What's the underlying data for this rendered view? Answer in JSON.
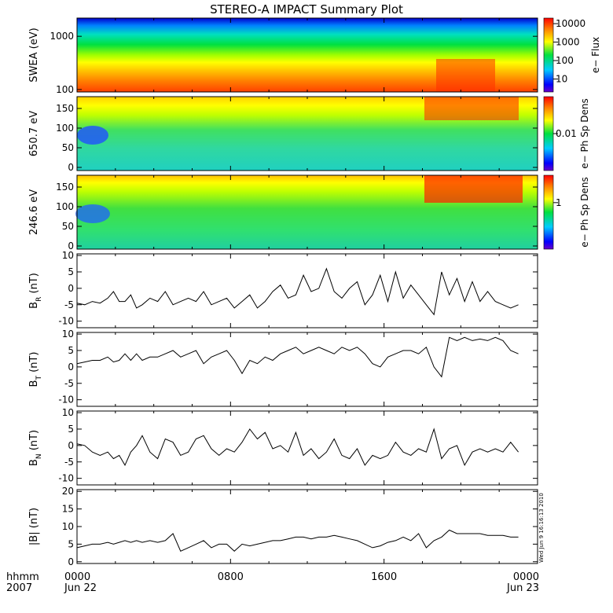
{
  "title": "STEREO-A IMPACT Summary Plot",
  "stamp": "Wed Jun  9 16:16:13 2010",
  "xaxis": {
    "unit_label": "hhmm",
    "year_label": "2007",
    "range_hours": [
      0,
      24
    ],
    "ticks": [
      {
        "hour": 0,
        "time": "0000",
        "date": "Jun 22"
      },
      {
        "hour": 8,
        "time": "0800",
        "date": ""
      },
      {
        "hour": 16,
        "time": "1600",
        "date": ""
      },
      {
        "hour": 24,
        "time": "0000",
        "date": "Jun 23"
      }
    ]
  },
  "chart_data": [
    {
      "type": "heatmap",
      "ylabel": "SWEA (eV)",
      "y_scale": "log",
      "y_range": [
        90,
        2200
      ],
      "yticks": [
        {
          "v": 100,
          "label": "100"
        },
        {
          "v": 1000,
          "label": "1000"
        }
      ],
      "colorbar": {
        "label": "e− Flux",
        "scale": "log",
        "range": [
          2,
          20000
        ],
        "ticks": [
          {
            "v": 10,
            "label": "10"
          },
          {
            "v": 100,
            "label": "100"
          },
          {
            "v": 1000,
            "label": "1000"
          },
          {
            "v": 10000,
            "label": "10000"
          }
        ]
      }
    },
    {
      "type": "heatmap",
      "ylabel": "650.7 eV",
      "y_range": [
        -8,
        180
      ],
      "yticks": [
        {
          "v": 0,
          "label": "0"
        },
        {
          "v": 50,
          "label": "50"
        },
        {
          "v": 100,
          "label": "100"
        },
        {
          "v": 150,
          "label": "150"
        }
      ],
      "colorbar": {
        "label": "e− Ph Sp Dens",
        "scale": "log",
        "range": [
          0.0005,
          0.2
        ],
        "ticks": [
          {
            "v": 0.01,
            "label": "0.01"
          }
        ]
      }
    },
    {
      "type": "heatmap",
      "ylabel": "246.6 eV",
      "y_range": [
        -8,
        180
      ],
      "yticks": [
        {
          "v": 0,
          "label": "0"
        },
        {
          "v": 50,
          "label": "50"
        },
        {
          "v": 100,
          "label": "100"
        },
        {
          "v": 150,
          "label": "150"
        }
      ],
      "colorbar": {
        "label": "e− Ph Sp Dens",
        "scale": "log",
        "range": [
          0.02,
          10
        ],
        "ticks": [
          {
            "v": 1,
            "label": "1"
          }
        ]
      }
    },
    {
      "type": "line",
      "ylabel_main": "B",
      "ylabel_sub": "R",
      "ylabel_unit": "(nT)",
      "ylim": [
        -12,
        10.5
      ],
      "yticks": [
        -10,
        -5,
        0,
        5,
        10
      ],
      "x": [
        0,
        0.4,
        0.8,
        1.2,
        1.6,
        1.9,
        2.2,
        2.5,
        2.8,
        3.1,
        3.4,
        3.8,
        4.2,
        4.6,
        5,
        5.4,
        5.8,
        6.2,
        6.6,
        7,
        7.4,
        7.8,
        8.2,
        8.6,
        9,
        9.4,
        9.8,
        10.2,
        10.6,
        11,
        11.4,
        11.8,
        12.2,
        12.6,
        13,
        13.4,
        13.8,
        14.2,
        14.6,
        15,
        15.4,
        15.8,
        16.2,
        16.6,
        17,
        17.4,
        17.8,
        18.2,
        18.6,
        19,
        19.4,
        19.8,
        20.2,
        20.6,
        21,
        21.4,
        21.8,
        22.2,
        22.6,
        23,
        23.4,
        23.8,
        24
      ],
      "y": [
        -4.5,
        -5,
        -4,
        -4.5,
        -3,
        -1,
        -4,
        -4,
        -2,
        -6,
        -5,
        -3,
        -4,
        -1,
        -5,
        -4,
        -3,
        -4,
        -1,
        -5,
        -4,
        -3,
        -6,
        -4,
        -2,
        -6,
        -4,
        -1,
        1,
        -3,
        -2,
        4,
        -1,
        0,
        6,
        -1,
        -3,
        0,
        2,
        -5,
        -2,
        4,
        -4,
        5,
        -3,
        1,
        -2,
        -5,
        -8,
        5,
        -2,
        3,
        -4,
        2,
        -4,
        -1,
        -4,
        -5,
        -6,
        -5,
        -6,
        -3,
        -4
      ],
      "plot_x_range": [
        0,
        23.3
      ]
    },
    {
      "type": "line",
      "ylabel_main": "B",
      "ylabel_sub": "T",
      "ylabel_unit": "(nT)",
      "ylim": [
        -12,
        10.5
      ],
      "yticks": [
        -10,
        -5,
        0,
        5,
        10
      ],
      "x": [
        0,
        0.4,
        0.8,
        1.2,
        1.6,
        1.9,
        2.2,
        2.5,
        2.8,
        3.1,
        3.4,
        3.8,
        4.2,
        4.6,
        5,
        5.4,
        5.8,
        6.2,
        6.6,
        7,
        7.4,
        7.8,
        8.2,
        8.6,
        9,
        9.4,
        9.8,
        10.2,
        10.6,
        11,
        11.4,
        11.8,
        12.2,
        12.6,
        13,
        13.4,
        13.8,
        14.2,
        14.6,
        15,
        15.4,
        15.8,
        16.2,
        16.6,
        17,
        17.4,
        17.8,
        18.2,
        18.6,
        19,
        19.4,
        19.8,
        20.2,
        20.6,
        21,
        21.4,
        21.8,
        22.2,
        22.6,
        23,
        23.4,
        23.8,
        24
      ],
      "y": [
        1,
        1.5,
        2,
        2,
        3,
        1.5,
        2,
        4,
        2,
        4,
        2,
        3,
        3,
        4,
        5,
        3,
        4,
        5,
        1,
        3,
        4,
        5,
        2,
        -2,
        2,
        1,
        3,
        2,
        4,
        5,
        6,
        4,
        5,
        6,
        5,
        4,
        6,
        5,
        6,
        4,
        1,
        0,
        3,
        4,
        5,
        5,
        4,
        6,
        0,
        -3,
        9,
        8,
        9,
        8,
        8.5,
        8,
        9,
        8,
        5,
        4,
        5,
        6,
        5
      ],
      "plot_x_range": [
        0,
        23.3
      ]
    },
    {
      "type": "line",
      "ylabel_main": "B",
      "ylabel_sub": "N",
      "ylabel_unit": "(nT)",
      "ylim": [
        -12,
        10.5
      ],
      "yticks": [
        -10,
        -5,
        0,
        5,
        10
      ],
      "x": [
        0,
        0.4,
        0.8,
        1.2,
        1.6,
        1.9,
        2.2,
        2.5,
        2.8,
        3.1,
        3.4,
        3.8,
        4.2,
        4.6,
        5,
        5.4,
        5.8,
        6.2,
        6.6,
        7,
        7.4,
        7.8,
        8.2,
        8.6,
        9,
        9.4,
        9.8,
        10.2,
        10.6,
        11,
        11.4,
        11.8,
        12.2,
        12.6,
        13,
        13.4,
        13.8,
        14.2,
        14.6,
        15,
        15.4,
        15.8,
        16.2,
        16.6,
        17,
        17.4,
        17.8,
        18.2,
        18.6,
        19,
        19.4,
        19.8,
        20.2,
        20.6,
        21,
        21.4,
        21.8,
        22.2,
        22.6,
        23,
        23.4,
        23.8,
        24
      ],
      "y": [
        0.5,
        0,
        -2,
        -3,
        -2,
        -4,
        -3,
        -6,
        -2,
        0,
        3,
        -2,
        -4,
        2,
        1,
        -3,
        -2,
        2,
        3,
        -1,
        -3,
        -1,
        -2,
        1,
        5,
        2,
        4,
        -1,
        0,
        -2,
        4,
        -3,
        -1,
        -4,
        -2,
        2,
        -3,
        -4,
        -1,
        -6,
        -3,
        -4,
        -3,
        1,
        -2,
        -3,
        -1,
        -2,
        5,
        -4,
        -1,
        0,
        -6,
        -2,
        -1,
        -2,
        -1,
        -2,
        1,
        -2,
        -1,
        3,
        -2
      ],
      "plot_x_range": [
        0,
        23.3
      ]
    },
    {
      "type": "line",
      "ylabel_main": "|B|",
      "ylabel_sub": "",
      "ylabel_unit": "(nT)",
      "ylim": [
        -0.5,
        20.5
      ],
      "yticks": [
        0,
        5,
        10,
        15,
        20
      ],
      "x": [
        0,
        0.4,
        0.8,
        1.2,
        1.6,
        1.9,
        2.2,
        2.5,
        2.8,
        3.1,
        3.4,
        3.8,
        4.2,
        4.6,
        5,
        5.4,
        5.8,
        6.2,
        6.6,
        7,
        7.4,
        7.8,
        8.2,
        8.6,
        9,
        9.4,
        9.8,
        10.2,
        10.6,
        11,
        11.4,
        11.8,
        12.2,
        12.6,
        13,
        13.4,
        13.8,
        14.2,
        14.6,
        15,
        15.4,
        15.8,
        16.2,
        16.6,
        17,
        17.4,
        17.8,
        18.2,
        18.6,
        19,
        19.4,
        19.8,
        20.2,
        20.6,
        21,
        21.4,
        21.8,
        22.2,
        22.6,
        23,
        23.4,
        23.8,
        24
      ],
      "y": [
        4,
        4.5,
        5,
        5,
        5.5,
        5,
        5.5,
        6,
        5.5,
        6,
        5.5,
        6,
        5.5,
        6,
        8,
        3,
        4,
        5,
        6,
        4,
        5,
        5,
        3,
        5,
        4.5,
        5,
        5.5,
        6,
        6,
        6.5,
        7,
        7,
        6.5,
        7,
        7,
        7.5,
        7,
        6.5,
        6,
        5,
        4,
        4.5,
        5.5,
        6,
        7,
        6,
        8,
        4,
        6,
        7,
        9,
        8,
        8,
        8,
        8,
        7.5,
        7.5,
        7.5,
        7,
        7,
        7,
        7,
        7
      ],
      "plot_x_range": [
        0,
        23.3
      ]
    }
  ]
}
